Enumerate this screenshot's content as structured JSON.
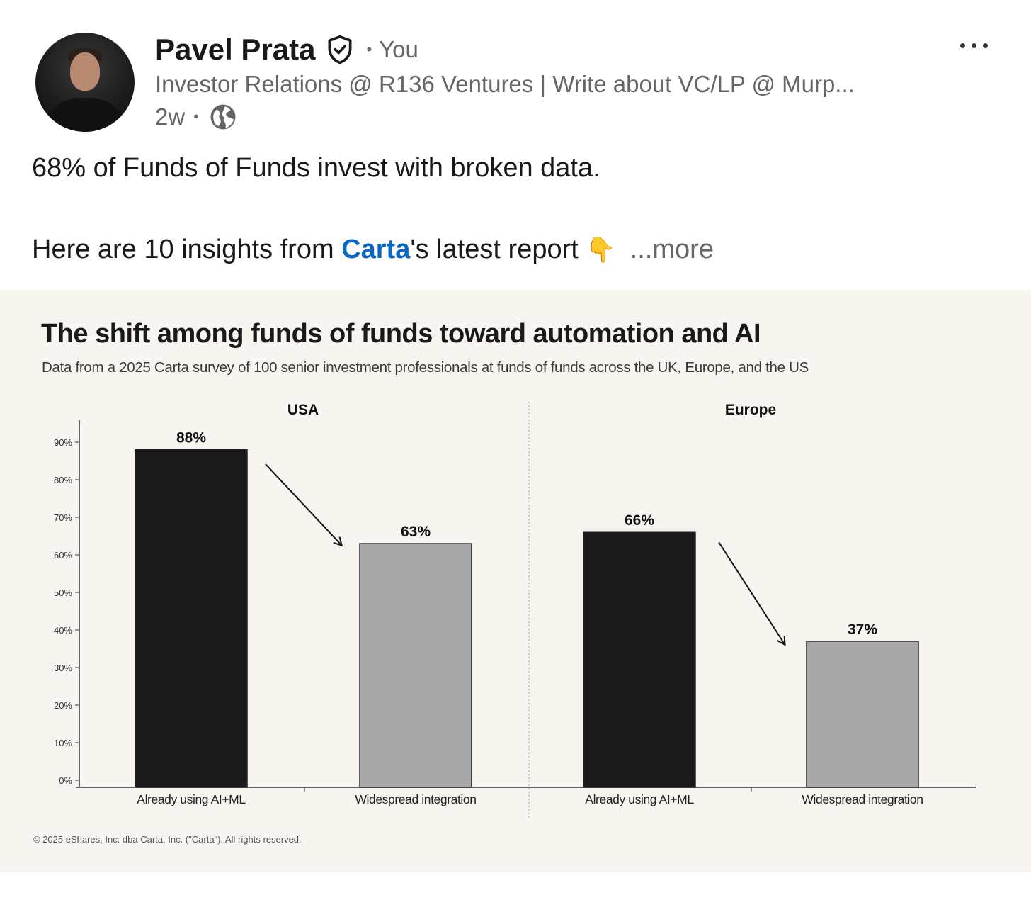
{
  "post": {
    "author": {
      "name": "Pavel Prata",
      "relation": "You",
      "headline": "Investor Relations @ R136 Ventures | Write about VC/LP @ Murp...",
      "time": "2w",
      "separator": "•"
    },
    "text": {
      "line1": "68% of Funds of Funds invest with broken data.",
      "line2_before": "Here are 10 insights from ",
      "mention": "Carta",
      "line2_after": "'s latest report",
      "emoji": "👇",
      "see_more": "...more"
    },
    "icons": {
      "verified": "verified-shield-icon",
      "visibility": "globe-icon",
      "menu": "more-options-icon"
    },
    "colors": {
      "mention": "#0a66c2",
      "text": "#191919",
      "muted": "#666666",
      "chart_background": "#f8f5f0"
    }
  },
  "chart_title": "The shift among funds of funds toward automation and AI",
  "chart_subtitle": "Data from a 2025 Carta survey of 100 senior investment professionals at funds of funds across the UK, Europe, and the US",
  "copyright": "© 2025 eShares, Inc. dba Carta, Inc. (\"Carta\"). All rights reserved.",
  "chart_data": [
    {
      "type": "bar",
      "title": "USA",
      "categories": [
        "Already using AI+ML",
        "Widespread integration"
      ],
      "values": [
        88,
        63
      ],
      "data_labels": [
        "88%",
        "63%"
      ],
      "bar_colors": [
        "#1a1a1a",
        "#a8a8a8"
      ],
      "ylim": [
        0,
        95
      ],
      "yticks": [
        0,
        10,
        20,
        30,
        40,
        50,
        60,
        70,
        80,
        90
      ],
      "ytick_labels": [
        "0%",
        "10%",
        "20%",
        "30%",
        "40%",
        "50%",
        "60%",
        "70%",
        "80%",
        "90%"
      ],
      "arrow": "decline"
    },
    {
      "type": "bar",
      "title": "Europe",
      "categories": [
        "Already using AI+ML",
        "Widespread integration"
      ],
      "values": [
        66,
        37
      ],
      "data_labels": [
        "66%",
        "37%"
      ],
      "bar_colors": [
        "#1a1a1a",
        "#a8a8a8"
      ],
      "ylim": [
        0,
        95
      ],
      "arrow": "decline"
    }
  ]
}
